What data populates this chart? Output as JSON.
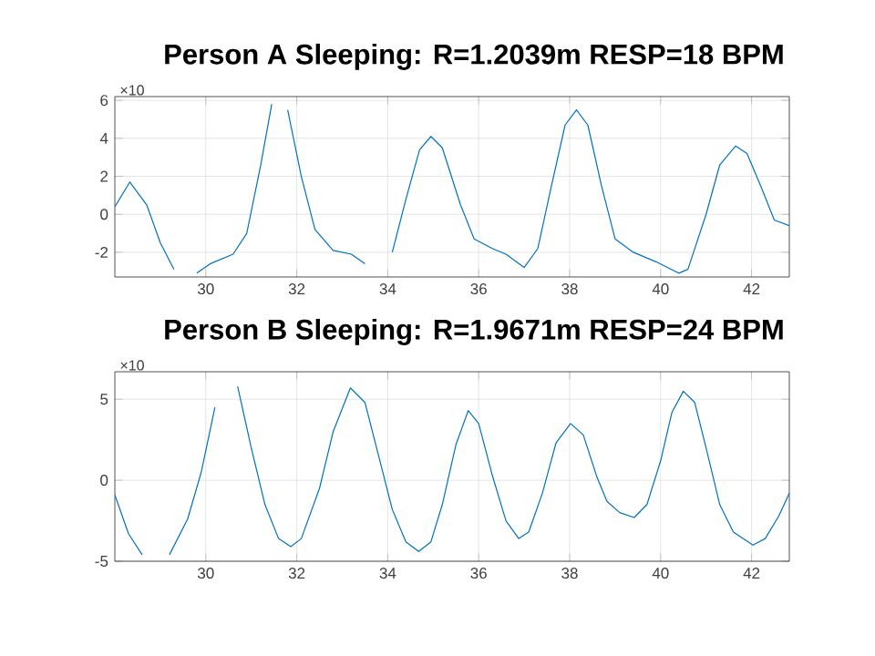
{
  "chart_data": [
    {
      "type": "line",
      "title": "Person A Sleeping: R=1.2039m  RESP=18 BPM",
      "annotations": [
        "×10"
      ],
      "x": [
        28.0,
        28.33,
        28.7,
        29.0,
        29.3,
        29.5,
        29.8,
        30.1,
        30.6,
        30.9,
        31.2,
        31.45,
        31.6,
        31.8,
        32.1,
        32.4,
        32.8,
        33.2,
        33.5,
        33.8,
        34.1,
        34.4,
        34.7,
        34.95,
        35.2,
        35.6,
        35.9,
        36.3,
        36.6,
        37.0,
        37.3,
        37.6,
        37.9,
        38.15,
        38.4,
        38.7,
        39.0,
        39.4,
        39.9,
        40.4,
        40.6,
        41.0,
        41.3,
        41.65,
        41.9,
        42.2,
        42.5,
        42.83
      ],
      "series": [
        {
          "color": "#0072bd",
          "values": [
            0.4,
            1.7,
            0.5,
            -1.5,
            -2.9,
            null,
            -3.1,
            -2.6,
            -2.1,
            -1.0,
            2.5,
            5.8,
            null,
            5.5,
            2.0,
            -0.8,
            -1.9,
            -2.1,
            -2.6,
            null,
            -2.0,
            0.8,
            3.4,
            4.1,
            3.5,
            0.5,
            -1.3,
            -1.8,
            -2.1,
            -2.8,
            -1.8,
            1.5,
            4.7,
            5.5,
            4.7,
            1.5,
            -1.3,
            -2.0,
            -2.5,
            -3.1,
            -2.9,
            0.0,
            2.6,
            3.6,
            3.2,
            1.5,
            -0.3,
            -0.6
          ]
        }
      ],
      "xlim": [
        28.0,
        42.83
      ],
      "ylim": [
        -3.3,
        6.2
      ],
      "xticks": [
        30,
        32,
        34,
        36,
        38,
        40,
        42
      ],
      "yticks": [
        -2,
        0,
        2,
        4,
        6
      ],
      "grid": true
    },
    {
      "type": "line",
      "title": "Person B Sleeping: R=1.9671m  RESP=24 BPM",
      "annotations": [
        "×10"
      ],
      "x": [
        28.0,
        28.3,
        28.6,
        28.85,
        29.2,
        29.6,
        29.9,
        30.2,
        30.47,
        30.7,
        31.0,
        31.3,
        31.6,
        31.87,
        32.1,
        32.5,
        32.8,
        33.18,
        33.5,
        33.8,
        34.1,
        34.4,
        34.68,
        34.95,
        35.2,
        35.5,
        35.77,
        36.0,
        36.3,
        36.6,
        36.88,
        37.1,
        37.4,
        37.7,
        38.02,
        38.3,
        38.6,
        38.82,
        39.1,
        39.42,
        39.7,
        40.0,
        40.25,
        40.5,
        40.75,
        41.0,
        41.3,
        41.6,
        42.03,
        42.3,
        42.6,
        42.83
      ],
      "series": [
        {
          "color": "#0072bd",
          "values": [
            -0.9,
            -3.3,
            -4.6,
            null,
            -4.6,
            -2.4,
            0.5,
            4.5,
            null,
            5.8,
            2.0,
            -1.5,
            -3.6,
            -4.1,
            -3.6,
            -0.5,
            3.0,
            5.7,
            4.8,
            1.5,
            -1.8,
            -3.8,
            -4.4,
            -3.8,
            -1.5,
            2.2,
            4.3,
            3.5,
            0.3,
            -2.5,
            -3.6,
            -3.2,
            -0.8,
            2.3,
            3.5,
            2.8,
            0.2,
            -1.3,
            -2.0,
            -2.3,
            -1.5,
            1.2,
            4.2,
            5.5,
            4.8,
            2.0,
            -1.5,
            -3.2,
            -4.0,
            -3.6,
            -2.2,
            -0.8
          ]
        }
      ],
      "xlim": [
        28.0,
        42.83
      ],
      "ylim": [
        -5,
        6.7
      ],
      "xticks": [
        30,
        32,
        34,
        36,
        38,
        40,
        42
      ],
      "yticks": [
        -5,
        0,
        5
      ],
      "grid": true
    }
  ]
}
